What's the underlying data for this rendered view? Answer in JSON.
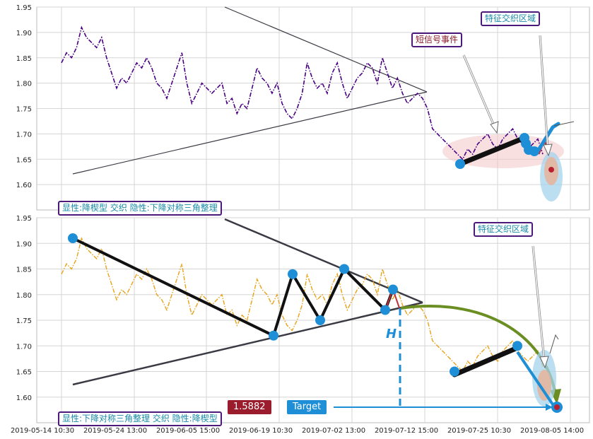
{
  "chart_data": [
    {
      "type": "line",
      "panel": "top",
      "ylim": [
        1.55,
        1.95
      ],
      "y_ticks": [
        "1.95",
        "1.90",
        "1.85",
        "1.80",
        "1.75",
        "1.70",
        "1.65",
        "1.60"
      ],
      "series": [
        {
          "style": "dash-dot",
          "color": "#4b0082",
          "values": [
            1.84,
            1.86,
            1.85,
            1.87,
            1.91,
            1.89,
            1.88,
            1.87,
            1.89,
            1.85,
            1.82,
            1.79,
            1.81,
            1.8,
            1.82,
            1.84,
            1.83,
            1.85,
            1.83,
            1.8,
            1.79,
            1.77,
            1.8,
            1.83,
            1.86,
            1.8,
            1.76,
            1.78,
            1.8,
            1.79,
            1.78,
            1.79,
            1.8,
            1.76,
            1.77,
            1.74,
            1.76,
            1.75,
            1.79,
            1.83,
            1.81,
            1.8,
            1.78,
            1.8,
            1.76,
            1.74,
            1.73,
            1.75,
            1.78,
            1.84,
            1.81,
            1.79,
            1.8,
            1.78,
            1.82,
            1.84,
            1.8,
            1.77,
            1.79,
            1.81,
            1.82,
            1.84,
            1.83,
            1.8,
            1.85,
            1.82,
            1.79,
            1.81,
            1.78,
            1.76,
            1.77,
            1.78,
            1.77,
            1.75,
            1.71,
            1.7,
            1.69,
            1.68,
            1.67,
            1.66,
            1.65,
            1.67,
            1.66,
            1.68,
            1.69,
            1.7,
            1.68,
            1.67,
            1.69,
            1.7,
            1.71,
            1.69,
            1.68,
            1.67,
            1.68,
            1.69,
            1.66
          ]
        }
      ]
    },
    {
      "type": "line",
      "panel": "bottom",
      "ylim": [
        1.55,
        1.95
      ],
      "y_ticks": [
        "1.95",
        "1.90",
        "1.85",
        "1.80",
        "1.75",
        "1.70",
        "1.65",
        "1.60"
      ],
      "series": [
        {
          "style": "dash-dot",
          "color": "#e8a317",
          "values": [
            1.84,
            1.86,
            1.85,
            1.87,
            1.91,
            1.89,
            1.88,
            1.87,
            1.89,
            1.85,
            1.82,
            1.79,
            1.81,
            1.8,
            1.82,
            1.84,
            1.83,
            1.85,
            1.83,
            1.8,
            1.79,
            1.77,
            1.8,
            1.83,
            1.86,
            1.8,
            1.76,
            1.78,
            1.8,
            1.79,
            1.78,
            1.79,
            1.8,
            1.76,
            1.77,
            1.74,
            1.76,
            1.75,
            1.79,
            1.83,
            1.81,
            1.8,
            1.78,
            1.8,
            1.76,
            1.74,
            1.73,
            1.75,
            1.78,
            1.84,
            1.81,
            1.79,
            1.8,
            1.78,
            1.82,
            1.84,
            1.8,
            1.77,
            1.79,
            1.81,
            1.82,
            1.84,
            1.83,
            1.8,
            1.85,
            1.82,
            1.79,
            1.81,
            1.78,
            1.76,
            1.77,
            1.78,
            1.77,
            1.75,
            1.71,
            1.7,
            1.69,
            1.68,
            1.67,
            1.66,
            1.65,
            1.67,
            1.66,
            1.68,
            1.69,
            1.7,
            1.68,
            1.67,
            1.69,
            1.7,
            1.71,
            1.69,
            1.68,
            1.67,
            1.68,
            1.69,
            1.66
          ]
        }
      ]
    }
  ],
  "x_ticks": [
    "2019-05-14 10:30",
    "2019-05-24 13:00",
    "2019-06-05 15:00",
    "2019-06-19 10:30",
    "2019-07-02 13:00",
    "2019-07-12 15:00",
    "2019-07-25 10:30",
    "2019-08-05 14:00"
  ],
  "top_panel": {
    "label_explicit": "显性:降楔型 交织 隐性:下降对称三角整理",
    "label_feature": "特征交织区域",
    "label_short_signal": "短信号事件"
  },
  "bottom_panel": {
    "label_explicit": "显性:下降对称三角整理 交织 隐性:降楔型",
    "label_feature": "特征交织区域",
    "h_label": "H",
    "target_label": "Target",
    "target_value": "1.5882",
    "pattern_points_y": [
      1.91,
      1.72,
      1.84,
      1.75,
      1.85,
      1.77,
      1.81
    ],
    "continuation_points_y": [
      1.65,
      1.7
    ]
  },
  "colors": {
    "top_series": "#4b0082",
    "bottom_series": "#e8a317",
    "marker": "#1e8fd6",
    "label_border": "#4b1a7a",
    "target_box": "#1e8fd6",
    "value_box": "#9b1c2c",
    "arc": "#6b8e23"
  }
}
